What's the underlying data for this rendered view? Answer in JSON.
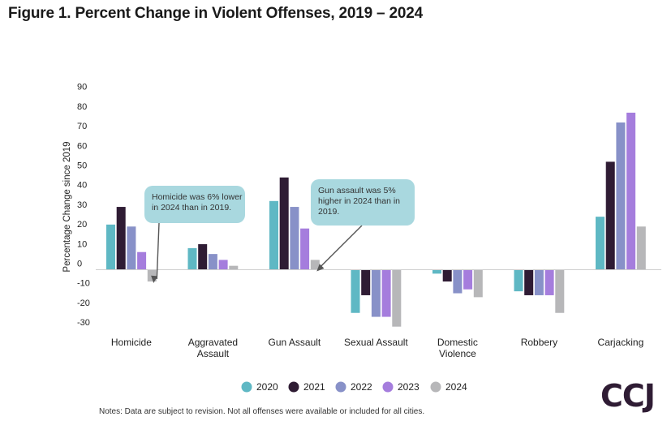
{
  "title": "Figure 1. Percent Change in Violent Offenses, 2019 – 2024",
  "notes": "Notes: Data are subject to revision. Not all offenses were available or included for all cities.",
  "logo": "CCJ",
  "chart_data": {
    "type": "bar",
    "title": "Figure 1. Percent Change in Violent Offenses, 2019 – 2024",
    "xlabel": "",
    "ylabel": "Percentage Change since 2019",
    "ylim": [
      -30,
      90
    ],
    "yticks": [
      90,
      80,
      70,
      60,
      50,
      40,
      30,
      20,
      10,
      0,
      -10,
      -20,
      -30
    ],
    "grid": false,
    "legend_position": "bottom",
    "categories": [
      [
        "Homicide"
      ],
      [
        "Aggravated",
        "Assault"
      ],
      [
        "Gun Assault"
      ],
      [
        "Sexual Assault"
      ],
      [
        "Domestic",
        "Violence"
      ],
      [
        "Robbery"
      ],
      [
        "Carjacking"
      ]
    ],
    "series": [
      {
        "name": "2020",
        "color": "#5fb8c4",
        "values": [
          23,
          11,
          35,
          -22,
          -2,
          -11,
          27
        ]
      },
      {
        "name": "2021",
        "color": "#2f1c34",
        "values": [
          32,
          13,
          47,
          -13,
          -6,
          -13,
          55
        ]
      },
      {
        "name": "2022",
        "color": "#8891c8",
        "values": [
          22,
          8,
          32,
          -24,
          -12,
          -13,
          75
        ]
      },
      {
        "name": "2023",
        "color": "#a57ddd",
        "values": [
          9,
          5,
          21,
          -24,
          -10,
          -13,
          80
        ]
      },
      {
        "name": "2024",
        "color": "#b7b7b9",
        "values": [
          -6,
          2,
          5,
          -29,
          -14,
          -22,
          22
        ]
      }
    ],
    "annotations": [
      {
        "lines": [
          "Homicide was 6% lower",
          "in 2024 than in 2019."
        ],
        "category_index": 0,
        "series_index": 4
      },
      {
        "lines": [
          "Gun assault was 5%",
          "higher in 2024 than in",
          "2019."
        ],
        "category_index": 2,
        "series_index": 4
      }
    ]
  }
}
